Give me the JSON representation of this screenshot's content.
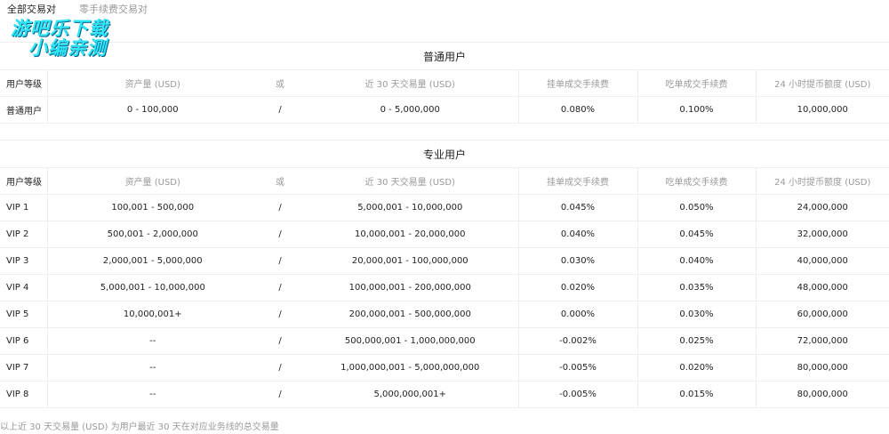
{
  "tabs": [
    "全部交易对",
    "零手续费交易对"
  ],
  "watermark": [
    "游吧乐下载",
    "小编亲测"
  ],
  "headers": [
    "用户等级",
    "资产量 (USD)",
    "或",
    "近 30 天交易量 (USD)",
    "挂单成交手续费",
    "吃单成交手续费",
    "24 小时提币额度 (USD)"
  ],
  "regular": {
    "title": "普通用户",
    "rows": [
      [
        "普通用户",
        "0 - 100,000",
        "/",
        "0 - 5,000,000",
        "0.080%",
        "0.100%",
        "10,000,000"
      ]
    ]
  },
  "pro": {
    "title": "专业用户",
    "rows": [
      [
        "VIP 1",
        "100,001 - 500,000",
        "/",
        "5,000,001 - 10,000,000",
        "0.045%",
        "0.050%",
        "24,000,000"
      ],
      [
        "VIP 2",
        "500,001 - 2,000,000",
        "/",
        "10,000,001 - 20,000,000",
        "0.040%",
        "0.045%",
        "32,000,000"
      ],
      [
        "VIP 3",
        "2,000,001 - 5,000,000",
        "/",
        "20,000,001 - 100,000,000",
        "0.030%",
        "0.040%",
        "40,000,000"
      ],
      [
        "VIP 4",
        "5,000,001 - 10,000,000",
        "/",
        "100,000,001 - 200,000,000",
        "0.020%",
        "0.035%",
        "48,000,000"
      ],
      [
        "VIP 5",
        "10,000,001+",
        "/",
        "200,000,001 - 500,000,000",
        "0.000%",
        "0.030%",
        "60,000,000"
      ],
      [
        "VIP 6",
        "--",
        "/",
        "500,000,001 - 1,000,000,000",
        "-0.002%",
        "0.025%",
        "72,000,000"
      ],
      [
        "VIP 7",
        "--",
        "/",
        "1,000,000,001 - 5,000,000,000",
        "-0.005%",
        "0.020%",
        "80,000,000"
      ],
      [
        "VIP 8",
        "--",
        "/",
        "5,000,000,001+",
        "-0.005%",
        "0.015%",
        "80,000,000"
      ]
    ]
  },
  "note": "以上近 30 天交易量 (USD) 为用户最近 30 天在对应业务线的总交易量"
}
